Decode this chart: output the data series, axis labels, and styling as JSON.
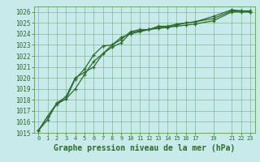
{
  "title": "Graphe pression niveau de la mer (hPa)",
  "background_color": "#c8eaea",
  "grid_color": "#5a9e5a",
  "line_color": "#2d6a2d",
  "ylim": [
    1015,
    1026.5
  ],
  "xlim": [
    -0.5,
    23.5
  ],
  "yticks": [
    1015,
    1016,
    1017,
    1018,
    1019,
    1020,
    1021,
    1022,
    1023,
    1024,
    1025,
    1026
  ],
  "xticks": [
    0,
    1,
    2,
    3,
    4,
    5,
    6,
    7,
    8,
    9,
    10,
    11,
    12,
    13,
    14,
    15,
    16,
    17,
    19,
    21,
    22,
    23
  ],
  "hours": [
    0,
    1,
    2,
    3,
    4,
    5,
    6,
    7,
    8,
    9,
    10,
    11,
    12,
    13,
    14,
    15,
    16,
    17,
    19,
    21,
    22,
    23
  ],
  "line1": [
    1015.2,
    1016.5,
    1017.7,
    1018.1,
    1019.0,
    1020.3,
    1021.5,
    1022.2,
    1022.8,
    1023.2,
    1024.1,
    1024.3,
    1024.4,
    1024.6,
    1024.6,
    1024.7,
    1024.8,
    1024.9,
    1025.2,
    1026.0,
    1026.0,
    1026.0
  ],
  "line2": [
    1015.2,
    1016.5,
    1017.6,
    1018.1,
    1019.9,
    1020.8,
    1022.1,
    1022.9,
    1023.0,
    1023.5,
    1024.2,
    1024.4,
    1024.4,
    1024.7,
    1024.7,
    1024.9,
    1025.0,
    1025.1,
    1025.4,
    1026.1,
    1026.1,
    1026.1
  ],
  "line3": [
    1015.2,
    1016.2,
    1017.7,
    1018.3,
    1020.0,
    1020.5,
    1021.0,
    1022.2,
    1023.0,
    1023.7,
    1024.0,
    1024.2,
    1024.4,
    1024.5,
    1024.6,
    1024.8,
    1025.0,
    1025.1,
    1025.6,
    1026.2,
    1026.1,
    1026.0
  ],
  "xlabel_fontsize": 7,
  "tick_fontsize": 5.5,
  "tick_fontsize_x": 5.0
}
